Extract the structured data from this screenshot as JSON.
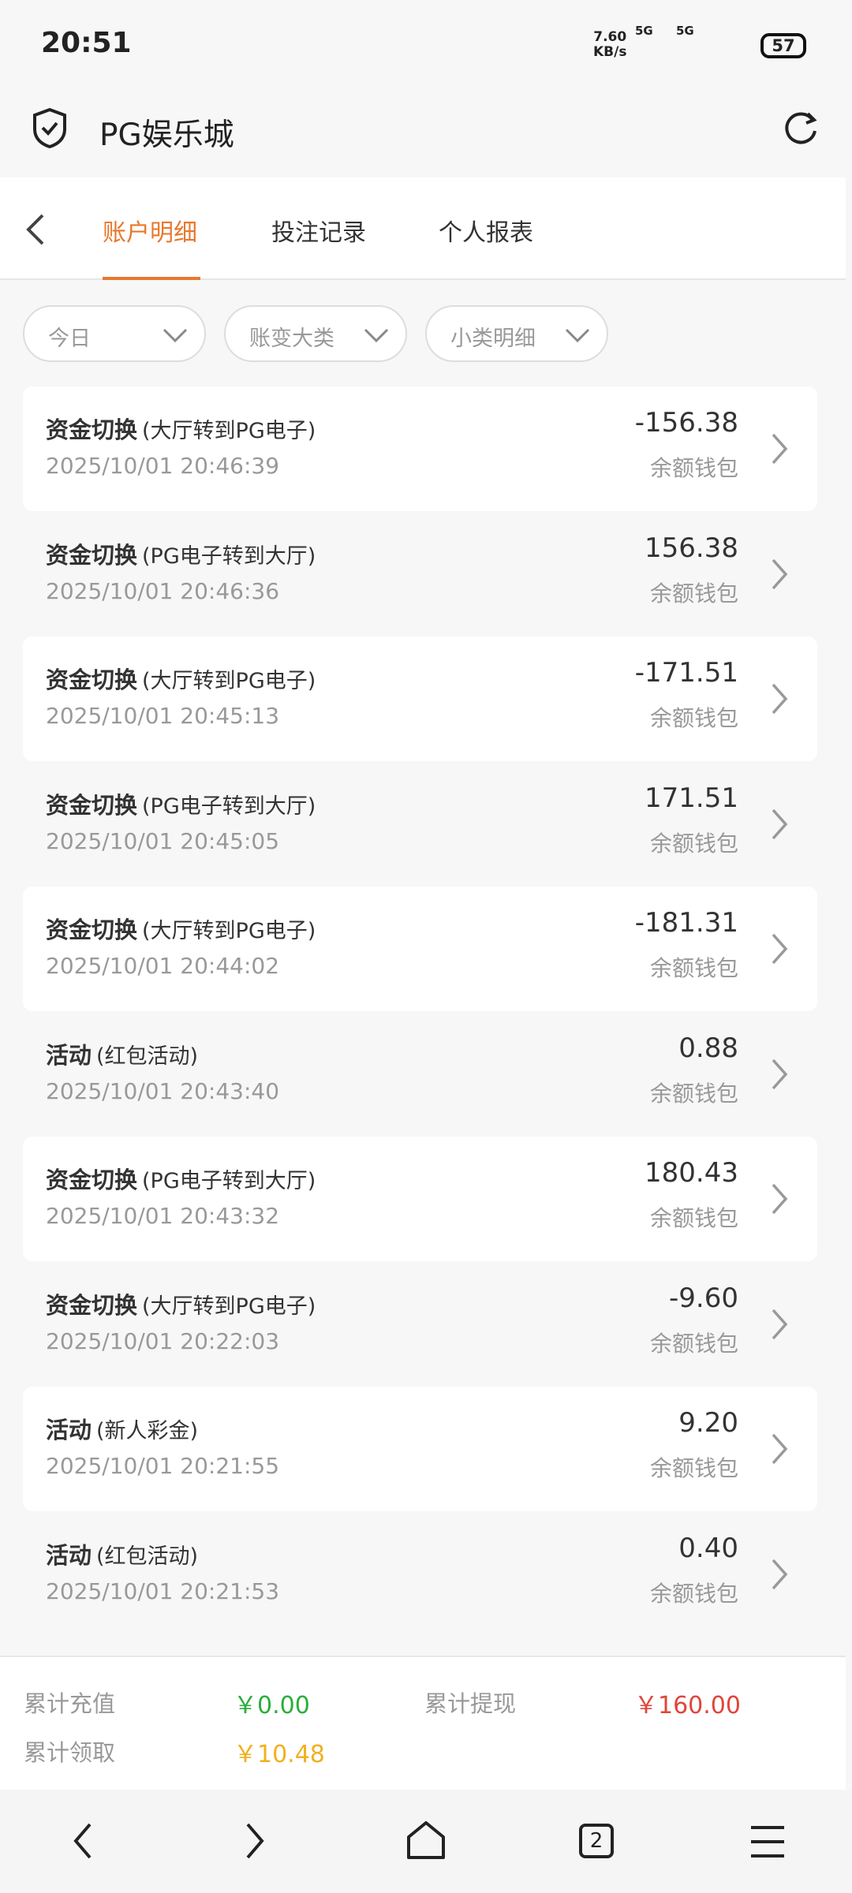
{
  "status_bar": {
    "time": "20:51",
    "speed": "7.60",
    "speed_unit": "KB/s",
    "signal_1": "5G",
    "signal_2": "5G",
    "battery": "57"
  },
  "header": {
    "title": "PG娱乐城"
  },
  "tabs": [
    "账户明细",
    "投注记录",
    "个人报表"
  ],
  "filters": [
    "今日",
    "账变大类",
    "小类明细"
  ],
  "records": [
    {
      "type": "资金切换",
      "detail": "(大厅转到PG电子)",
      "time": "2025/10/01 20:46:39",
      "amount": "-156.38",
      "wallet": "余额钱包"
    },
    {
      "type": "资金切换",
      "detail": "(PG电子转到大厅)",
      "time": "2025/10/01 20:46:36",
      "amount": "156.38",
      "wallet": "余额钱包"
    },
    {
      "type": "资金切换",
      "detail": "(大厅转到PG电子)",
      "time": "2025/10/01 20:45:13",
      "amount": "-171.51",
      "wallet": "余额钱包"
    },
    {
      "type": "资金切换",
      "detail": "(PG电子转到大厅)",
      "time": "2025/10/01 20:45:05",
      "amount": "171.51",
      "wallet": "余额钱包"
    },
    {
      "type": "资金切换",
      "detail": "(大厅转到PG电子)",
      "time": "2025/10/01 20:44:02",
      "amount": "-181.31",
      "wallet": "余额钱包"
    },
    {
      "type": "活动",
      "detail": "(红包活动)",
      "time": "2025/10/01 20:43:40",
      "amount": "0.88",
      "wallet": "余额钱包"
    },
    {
      "type": "资金切换",
      "detail": "(PG电子转到大厅)",
      "time": "2025/10/01 20:43:32",
      "amount": "180.43",
      "wallet": "余额钱包"
    },
    {
      "type": "资金切换",
      "detail": "(大厅转到PG电子)",
      "time": "2025/10/01 20:22:03",
      "amount": "-9.60",
      "wallet": "余额钱包"
    },
    {
      "type": "活动",
      "detail": "(新人彩金)",
      "time": "2025/10/01 20:21:55",
      "amount": "9.20",
      "wallet": "余额钱包"
    },
    {
      "type": "活动",
      "detail": "(红包活动)",
      "time": "2025/10/01 20:21:53",
      "amount": "0.40",
      "wallet": "余额钱包"
    }
  ],
  "summary": {
    "recharge_label": "累计充值",
    "recharge": "￥0.00",
    "withdraw_label": "累计提现",
    "withdraw": "￥160.00",
    "claim_label": "累计领取",
    "claim": "￥10.48"
  },
  "nav": {
    "tab_count": "2"
  }
}
